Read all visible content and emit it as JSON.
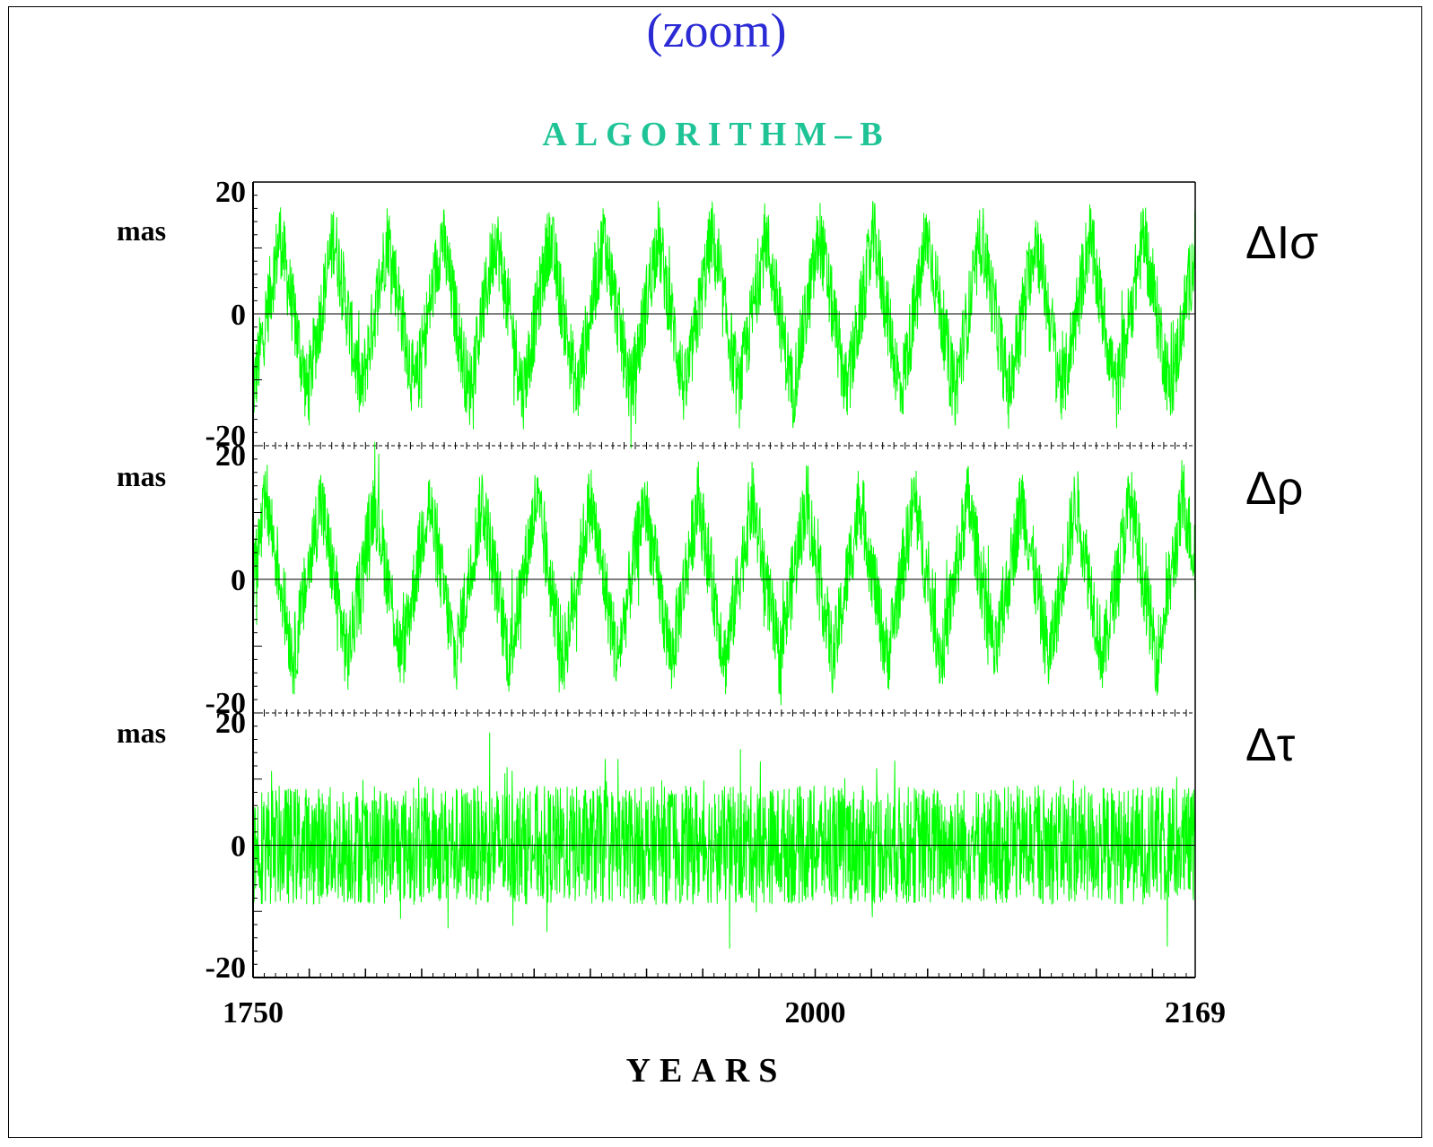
{
  "header": {
    "zoom": "(zoom)",
    "subtitle": "ALGORITHM–B"
  },
  "chart_data": {
    "type": "line",
    "title": "ALGORITHM–B",
    "xlabel": "YEARS",
    "xlim": [
      1750,
      2169
    ],
    "x_ticks": [
      "1750",
      "2000",
      "2169"
    ],
    "line_color": "#00ff00",
    "grid": false,
    "panels": [
      {
        "name": "ΔIσ",
        "ylabel": "mas",
        "ylim": [
          -20,
          20
        ],
        "y_ticks": [
          "20",
          "0",
          "-20"
        ],
        "period_years": 24,
        "amplitude_mas": 12,
        "noise_mas": 6
      },
      {
        "name": "Δρ",
        "ylabel": "mas",
        "ylim": [
          -20,
          20
        ],
        "y_ticks": [
          "20",
          "0",
          "-20"
        ],
        "period_years": 24,
        "amplitude_mas": 12,
        "noise_mas": 6
      },
      {
        "name": "Δτ",
        "ylabel": "mas",
        "ylim": [
          -20,
          20
        ],
        "y_ticks": [
          "20",
          "0",
          "-20"
        ],
        "period_years": 0,
        "amplitude_mas": 0,
        "noise_mas": 9
      }
    ]
  }
}
